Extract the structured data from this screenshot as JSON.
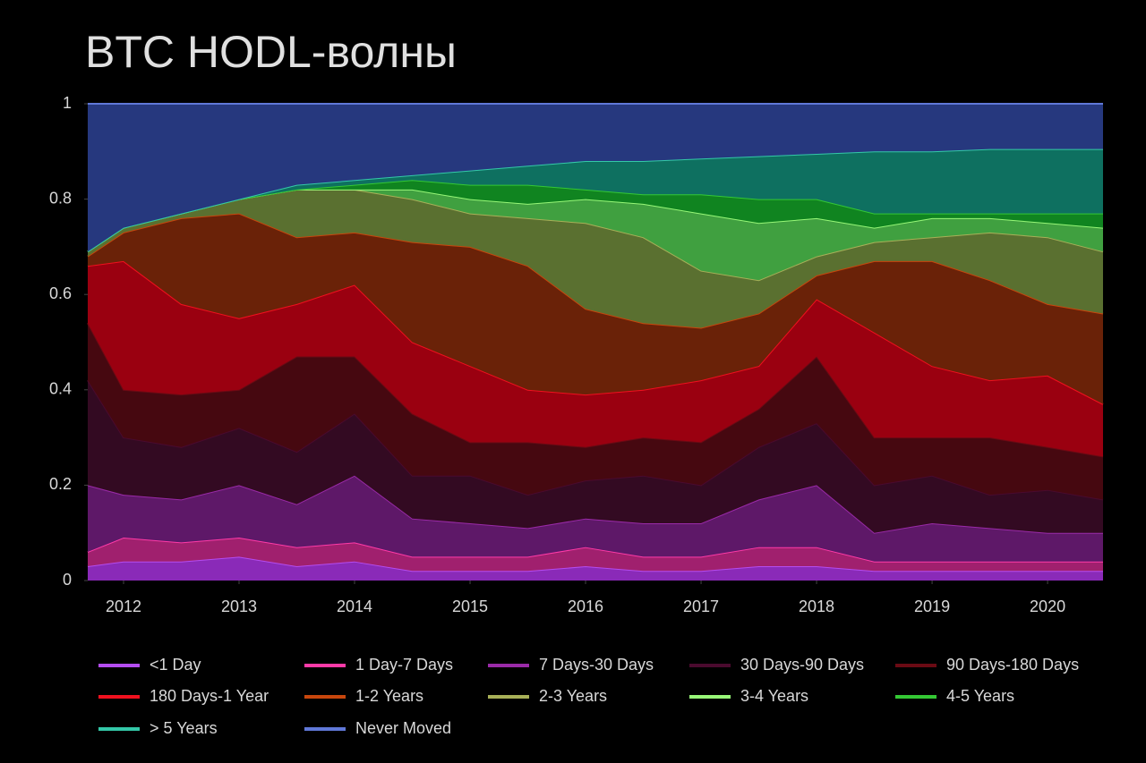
{
  "chart_data": {
    "type": "stacked-area",
    "title": "BTC HODL-волны",
    "x": [
      2011.69,
      2012,
      2012.5,
      2013,
      2013.5,
      2014,
      2014.5,
      2015,
      2015.5,
      2016,
      2016.5,
      2017,
      2017.5,
      2018,
      2018.5,
      2019,
      2019.5,
      2020,
      2020.48
    ],
    "xlim": [
      2011.69,
      2020.48
    ],
    "xticks": [
      2012,
      2013,
      2014,
      2015,
      2016,
      2017,
      2018,
      2019,
      2020
    ],
    "ylim": [
      0,
      1
    ],
    "yticks": [
      0,
      0.2,
      0.4,
      0.6,
      0.8,
      1
    ],
    "grid": false,
    "series": [
      {
        "name": "<1 Day",
        "color": "#b44cf0",
        "fill": "#8a2ab8",
        "values": [
          0.03,
          0.04,
          0.04,
          0.05,
          0.03,
          0.04,
          0.02,
          0.02,
          0.02,
          0.03,
          0.02,
          0.02,
          0.03,
          0.03,
          0.02,
          0.02,
          0.02,
          0.02,
          0.02
        ]
      },
      {
        "name": "1 Day-7 Days",
        "color": "#ff3aa8",
        "fill": "#a0206e",
        "values": [
          0.03,
          0.05,
          0.04,
          0.04,
          0.04,
          0.04,
          0.03,
          0.03,
          0.03,
          0.04,
          0.03,
          0.03,
          0.04,
          0.04,
          0.02,
          0.02,
          0.02,
          0.02,
          0.02
        ]
      },
      {
        "name": "7 Days-30 Days",
        "color": "#9a2aa8",
        "fill": "#5e1868",
        "values": [
          0.14,
          0.09,
          0.09,
          0.11,
          0.09,
          0.14,
          0.08,
          0.07,
          0.06,
          0.06,
          0.07,
          0.07,
          0.1,
          0.13,
          0.06,
          0.08,
          0.07,
          0.06,
          0.06
        ]
      },
      {
        "name": "30 Days-90 Days",
        "color": "#4a0a2e",
        "fill": "#330a22",
        "values": [
          0.22,
          0.12,
          0.11,
          0.12,
          0.11,
          0.13,
          0.09,
          0.1,
          0.07,
          0.08,
          0.1,
          0.08,
          0.11,
          0.13,
          0.1,
          0.1,
          0.07,
          0.09,
          0.07
        ]
      },
      {
        "name": "90 Days-180 Days",
        "color": "#6a0a14",
        "fill": "#460810",
        "values": [
          0.12,
          0.1,
          0.11,
          0.08,
          0.2,
          0.12,
          0.13,
          0.07,
          0.11,
          0.07,
          0.08,
          0.09,
          0.08,
          0.14,
          0.1,
          0.08,
          0.12,
          0.09,
          0.09
        ]
      },
      {
        "name": "180 Days-1 Year",
        "color": "#f0101e",
        "fill": "#9a0010",
        "values": [
          0.12,
          0.27,
          0.19,
          0.15,
          0.11,
          0.15,
          0.15,
          0.16,
          0.11,
          0.11,
          0.1,
          0.13,
          0.09,
          0.12,
          0.22,
          0.15,
          0.12,
          0.15,
          0.11
        ]
      },
      {
        "name": "1-2 Years",
        "color": "#c8460c",
        "fill": "#6a2208",
        "values": [
          0.02,
          0.06,
          0.18,
          0.22,
          0.14,
          0.11,
          0.21,
          0.25,
          0.26,
          0.18,
          0.14,
          0.11,
          0.11,
          0.05,
          0.15,
          0.22,
          0.21,
          0.15,
          0.19
        ]
      },
      {
        "name": "2-3 Years",
        "color": "#a8b058",
        "fill": "#5a7030",
        "values": [
          0.01,
          0.01,
          0.01,
          0.03,
          0.1,
          0.09,
          0.09,
          0.07,
          0.1,
          0.18,
          0.18,
          0.12,
          0.07,
          0.04,
          0.04,
          0.05,
          0.1,
          0.14,
          0.13
        ]
      },
      {
        "name": "3-4 Years",
        "color": "#98f878",
        "fill": "#40a040",
        "values": [
          0,
          0,
          0,
          0,
          0,
          0,
          0.02,
          0.03,
          0.03,
          0.05,
          0.07,
          0.12,
          0.12,
          0.08,
          0.03,
          0.04,
          0.03,
          0.03,
          0.05
        ]
      },
      {
        "name": "4-5 Years",
        "color": "#34c834",
        "fill": "#108420",
        "values": [
          0,
          0,
          0,
          0,
          0,
          0.01,
          0.02,
          0.03,
          0.04,
          0.02,
          0.02,
          0.04,
          0.05,
          0.04,
          0.03,
          0.01,
          0.01,
          0.02,
          0.03
        ]
      },
      {
        "name": "> 5 Years",
        "color": "#34c8a8",
        "fill": "#0e7060",
        "values": [
          0,
          0,
          0,
          0,
          0.01,
          0.01,
          0.01,
          0.03,
          0.04,
          0.06,
          0.07,
          0.075,
          0.09,
          0.095,
          0.13,
          0.13,
          0.135,
          0.135,
          0.135
        ]
      },
      {
        "name": "Never Moved",
        "color": "#6078d8",
        "fill": "#26387e",
        "values": [
          0.31,
          0.26,
          0.23,
          0.2,
          0.17,
          0.16,
          0.15,
          0.14,
          0.13,
          0.12,
          0.12,
          0.115,
          0.11,
          0.105,
          0.1,
          0.1,
          0.095,
          0.095,
          0.095
        ]
      }
    ]
  }
}
